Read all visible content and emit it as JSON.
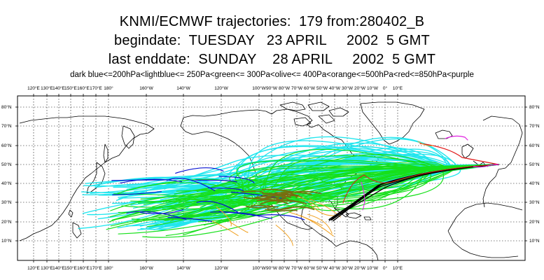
{
  "title": {
    "line1": "KNMI/ECMWF trajectories:  179 from:280402_B",
    "line2": "begindate:  TUESDAY   23 APRIL     2002  5 GMT",
    "line3": "last enddate:  SUNDAY    28 APRIL     2002  5 GMT"
  },
  "legend": "dark blue<=200hPa<lightblue<= 250Pa<green<= 300Pa<olive<= 400Pa<orange<=500hPa<red<=850hPa<purple",
  "lon_labels": [
    "120°E",
    "130°E",
    "140°E",
    "150°E",
    "160°E",
    "170°E",
    "180°",
    "160°W",
    "140°W",
    "120°W",
    "100°W",
    "90°W",
    "80°W",
    "70°W",
    "60°W",
    "50°W",
    "40°W",
    "30°W",
    "20°W",
    "10°W",
    "0°",
    "10°E"
  ],
  "lat_labels": [
    "80°N",
    "70°N",
    "60°N",
    "50°N",
    "40°N",
    "30°N",
    "20°N",
    "10°N"
  ],
  "colors": {
    "dark_blue": "#0a14d2",
    "light_blue": "#22e6ee",
    "green": "#16e01a",
    "olive": "#7a6a10",
    "orange": "#f0a020",
    "red": "#e01818",
    "purple": "#e020e0"
  }
}
